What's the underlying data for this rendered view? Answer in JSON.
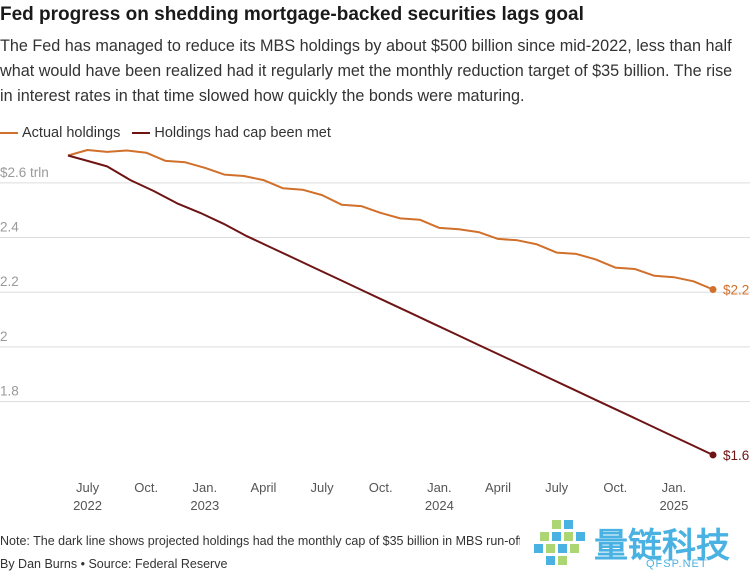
{
  "title": "Fed progress on shedding mortgage-backed securities lags goal",
  "subtitle": "The Fed has managed to reduce its MBS holdings by about $500 billion since mid-2022, less than half what would have been realized had it regularly met the monthly reduction target of $35 billion. The rise in interest rates in that time slowed how quickly the bonds were maturing.",
  "legend": [
    {
      "label": "Actual holdings",
      "color": "#d0702b"
    },
    {
      "label": "Holdings had cap been met",
      "color": "#6e1414"
    }
  ],
  "footer": {
    "note": "Note: The dark line shows projected holdings had the monthly cap of $35 billion in MBS run-off been met",
    "byline": "By Dan Burns • Source: Federal Reserve"
  },
  "watermark": {
    "text": "量链科技",
    "sub": "QFSP.NET"
  },
  "colors": {
    "actual": "#d0702b",
    "cap": "#6e1414",
    "grid": "#dddddd",
    "tick": "#9a9a9a"
  },
  "chart_data": {
    "type": "line",
    "title": "Fed progress on shedding mortgage-backed securities lags goal",
    "xlabel": "",
    "ylabel": "",
    "x_start": "2022-06",
    "ylim": [
      1.55,
      2.72
    ],
    "grid": true,
    "y_ticks": [
      {
        "value": 2.6,
        "label": "$2.6 trln"
      },
      {
        "value": 2.4,
        "label": "2.4"
      },
      {
        "value": 2.2,
        "label": "2.2"
      },
      {
        "value": 2.0,
        "label": "2"
      },
      {
        "value": 1.8,
        "label": "1.8"
      }
    ],
    "x_ticks": [
      {
        "index": 1,
        "label": "July",
        "sub": "2022"
      },
      {
        "index": 4,
        "label": "Oct.",
        "sub": ""
      },
      {
        "index": 7,
        "label": "Jan.",
        "sub": "2023"
      },
      {
        "index": 10,
        "label": "April",
        "sub": ""
      },
      {
        "index": 13,
        "label": "July",
        "sub": ""
      },
      {
        "index": 16,
        "label": "Oct.",
        "sub": ""
      },
      {
        "index": 19,
        "label": "Jan.",
        "sub": "2024"
      },
      {
        "index": 22,
        "label": "April",
        "sub": ""
      },
      {
        "index": 25,
        "label": "July",
        "sub": ""
      },
      {
        "index": 28,
        "label": "Oct.",
        "sub": ""
      },
      {
        "index": 31,
        "label": "Jan.",
        "sub": "2025"
      }
    ],
    "series": [
      {
        "name": "Actual holdings",
        "color": "#d0702b",
        "end_label": "$2.2",
        "values": [
          2.7,
          2.72,
          2.713,
          2.718,
          2.71,
          2.68,
          2.675,
          2.655,
          2.63,
          2.625,
          2.61,
          2.58,
          2.575,
          2.555,
          2.52,
          2.515,
          2.49,
          2.47,
          2.465,
          2.435,
          2.43,
          2.42,
          2.395,
          2.39,
          2.375,
          2.345,
          2.34,
          2.32,
          2.29,
          2.285,
          2.26,
          2.255,
          2.24,
          2.21
        ]
      },
      {
        "name": "Holdings had cap been met",
        "color": "#6e1414",
        "end_label": "$1.6",
        "values": [
          2.7,
          2.68,
          2.66,
          2.61,
          2.57,
          2.525,
          2.49,
          2.45,
          2.405,
          2.365,
          2.325,
          2.285,
          2.245,
          2.205,
          2.165,
          2.125,
          2.085,
          2.045,
          2.005,
          1.965,
          1.925,
          1.885,
          1.845,
          1.805,
          1.765,
          1.725,
          1.685,
          1.645,
          1.605
        ]
      }
    ],
    "series_offsets": [
      0,
      5
    ]
  }
}
